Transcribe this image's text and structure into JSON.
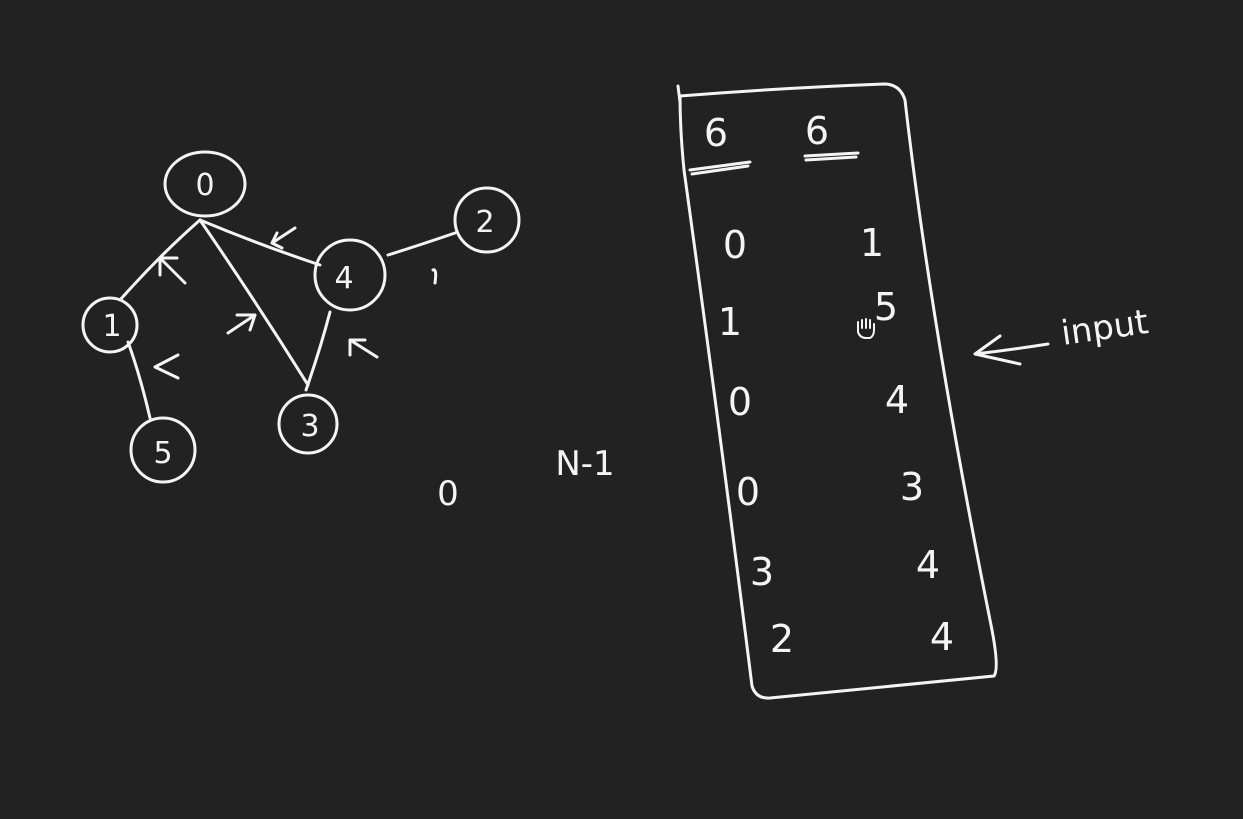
{
  "colors": {
    "background": "#222222",
    "ink": "#f4f4f4"
  },
  "graph": {
    "nodes": [
      {
        "id": "n0",
        "label": "0"
      },
      {
        "id": "n1",
        "label": "1"
      },
      {
        "id": "n2",
        "label": "2"
      },
      {
        "id": "n3",
        "label": "3"
      },
      {
        "id": "n4",
        "label": "4"
      },
      {
        "id": "n5",
        "label": "5"
      }
    ],
    "edges": [
      {
        "from": "0",
        "to": "1"
      },
      {
        "from": "0",
        "to": "4"
      },
      {
        "from": "0",
        "to": "3"
      },
      {
        "from": "4",
        "to": "2"
      },
      {
        "from": "4",
        "to": "3"
      },
      {
        "from": "1",
        "to": "5"
      }
    ]
  },
  "range_note": {
    "start": "0",
    "end": "N-1"
  },
  "input_table": {
    "header": [
      "6",
      "6"
    ],
    "rows": [
      [
        "0",
        "1"
      ],
      [
        "1",
        "5"
      ],
      [
        "0",
        "4"
      ],
      [
        "0",
        "3"
      ],
      [
        "3",
        "4"
      ],
      [
        "2",
        "4"
      ]
    ]
  },
  "annotation": {
    "label": "input"
  }
}
